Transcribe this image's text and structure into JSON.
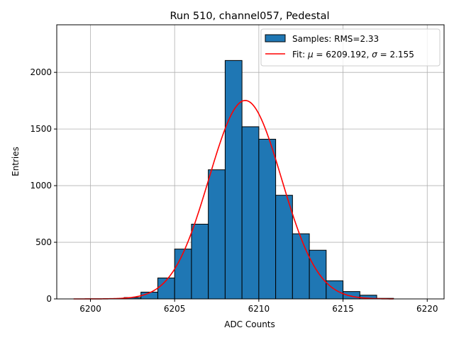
{
  "chart_data": {
    "type": "bar",
    "title": "Run 510, channel057, Pedestal",
    "xlabel": "ADC Counts",
    "ylabel": "Entries",
    "xlim": [
      6198.0,
      6221.0
    ],
    "ylim": [
      0,
      2420
    ],
    "xticks": [
      6200,
      6205,
      6210,
      6215,
      6220
    ],
    "yticks": [
      0,
      500,
      1000,
      1500,
      2000
    ],
    "grid": true,
    "legend_position": "top-right",
    "histogram": {
      "name": "Samples: RMS=2.33",
      "color": "#1f77b4",
      "bin_width": 1,
      "bins": [
        {
          "x": 6201,
          "value": 3
        },
        {
          "x": 6202,
          "value": 12
        },
        {
          "x": 6203,
          "value": 60
        },
        {
          "x": 6204,
          "value": 185
        },
        {
          "x": 6205,
          "value": 440
        },
        {
          "x": 6206,
          "value": 660
        },
        {
          "x": 6207,
          "value": 1140
        },
        {
          "x": 6208,
          "value": 2105
        },
        {
          "x": 6209,
          "value": 1520
        },
        {
          "x": 6210,
          "value": 1410
        },
        {
          "x": 6211,
          "value": 915
        },
        {
          "x": 6212,
          "value": 575
        },
        {
          "x": 6213,
          "value": 430
        },
        {
          "x": 6214,
          "value": 160
        },
        {
          "x": 6215,
          "value": 65
        },
        {
          "x": 6216,
          "value": 33
        },
        {
          "x": 6217,
          "value": 5
        }
      ]
    },
    "fit": {
      "name_prefix": "Fit: ",
      "mu_symbol": "μ",
      "sigma_symbol": "σ",
      "mu": 6209.192,
      "sigma": 2.155,
      "amplitude": 1752,
      "x_range": [
        6199,
        6218
      ],
      "color": "#ff0000"
    }
  }
}
